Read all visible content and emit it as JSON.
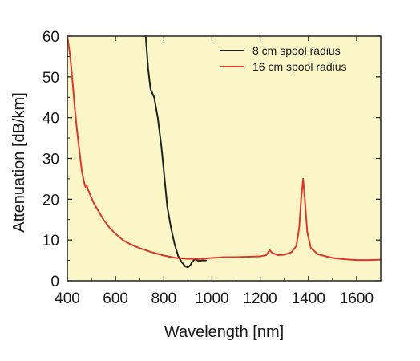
{
  "chart_data": {
    "type": "line",
    "title": "",
    "xlabel": "Wavelength [nm]",
    "ylabel": "Attenuation [dB/km]",
    "xlim": [
      400,
      1700
    ],
    "ylim": [
      0,
      60
    ],
    "xticks": [
      400,
      600,
      800,
      1000,
      1200,
      1400,
      1600
    ],
    "yticks": [
      0,
      10,
      20,
      30,
      40,
      50,
      60
    ],
    "grid": false,
    "legend_position": "top-right",
    "plot_background": "#fbf6c8",
    "series": [
      {
        "name": "8 cm spool radius",
        "color": "#222222",
        "points": [
          [
            725,
            61
          ],
          [
            735,
            52
          ],
          [
            745,
            47
          ],
          [
            760,
            45
          ],
          [
            775,
            40
          ],
          [
            790,
            33
          ],
          [
            805,
            24
          ],
          [
            815,
            18
          ],
          [
            830,
            13
          ],
          [
            845,
            9
          ],
          [
            860,
            6
          ],
          [
            875,
            4.5
          ],
          [
            890,
            3.5
          ],
          [
            900,
            3.3
          ],
          [
            910,
            3.8
          ],
          [
            920,
            4.8
          ],
          [
            930,
            5.3
          ],
          [
            940,
            5.0
          ],
          [
            950,
            4.9
          ],
          [
            960,
            5.0
          ],
          [
            975,
            5.0
          ]
        ]
      },
      {
        "name": "16 cm spool radius",
        "color": "#d93a2b",
        "points": [
          [
            400,
            60
          ],
          [
            405,
            58
          ],
          [
            412,
            55
          ],
          [
            420,
            50
          ],
          [
            430,
            43
          ],
          [
            440,
            37
          ],
          [
            450,
            32
          ],
          [
            460,
            27
          ],
          [
            470,
            24
          ],
          [
            475,
            23
          ],
          [
            480,
            23.5
          ],
          [
            485,
            22.5
          ],
          [
            495,
            21
          ],
          [
            510,
            19
          ],
          [
            530,
            17
          ],
          [
            550,
            15
          ],
          [
            575,
            13
          ],
          [
            600,
            11.5
          ],
          [
            630,
            10
          ],
          [
            660,
            9
          ],
          [
            700,
            8
          ],
          [
            750,
            7
          ],
          [
            800,
            6.2
          ],
          [
            850,
            5.6
          ],
          [
            900,
            5.4
          ],
          [
            950,
            5.4
          ],
          [
            1000,
            5.6
          ],
          [
            1050,
            5.8
          ],
          [
            1100,
            5.8
          ],
          [
            1150,
            5.9
          ],
          [
            1200,
            6.0
          ],
          [
            1225,
            6.3
          ],
          [
            1240,
            7.5
          ],
          [
            1250,
            6.8
          ],
          [
            1275,
            6.3
          ],
          [
            1300,
            6.4
          ],
          [
            1330,
            7.0
          ],
          [
            1350,
            8.5
          ],
          [
            1362,
            13
          ],
          [
            1370,
            20
          ],
          [
            1378,
            25
          ],
          [
            1385,
            20
          ],
          [
            1395,
            12
          ],
          [
            1410,
            8
          ],
          [
            1440,
            6.5
          ],
          [
            1500,
            5.6
          ],
          [
            1550,
            5.3
          ],
          [
            1600,
            5.1
          ],
          [
            1650,
            5.1
          ],
          [
            1700,
            5.2
          ]
        ]
      }
    ]
  }
}
